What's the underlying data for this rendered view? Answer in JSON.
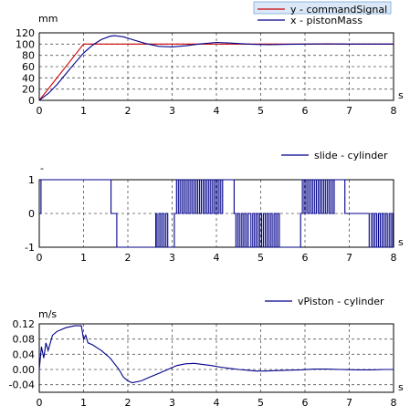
{
  "chart_data": [
    {
      "type": "line",
      "x_unit": "s",
      "y_unit": "mm",
      "xlim": [
        0,
        8
      ],
      "ylim": [
        0,
        120
      ],
      "x_ticks": [
        "0",
        "1",
        "2",
        "3",
        "4",
        "5",
        "6",
        "7",
        "8"
      ],
      "y_ticks": [
        "0",
        "20",
        "40",
        "60",
        "80",
        "100",
        "120"
      ],
      "grid": true,
      "legend": {
        "placement": "top-right",
        "entries": [
          "y - commandSignal",
          "x - pistonMass"
        ]
      },
      "series": [
        {
          "name": "y - commandSignal",
          "color": "#cc0000",
          "points": [
            [
              0,
              0
            ],
            [
              0.8,
              80
            ],
            [
              1.0,
              100
            ],
            [
              8,
              100
            ]
          ]
        },
        {
          "name": "x - pistonMass",
          "color": "#00008b",
          "points": [
            [
              0,
              0
            ],
            [
              0.2,
              12
            ],
            [
              0.4,
              28
            ],
            [
              0.6,
              47
            ],
            [
              0.8,
              66
            ],
            [
              1.0,
              84
            ],
            [
              1.2,
              98
            ],
            [
              1.4,
              108
            ],
            [
              1.6,
              114
            ],
            [
              1.7,
              115
            ],
            [
              1.9,
              113
            ],
            [
              2.1,
              108
            ],
            [
              2.4,
              101
            ],
            [
              2.7,
              96
            ],
            [
              3.0,
              95
            ],
            [
              3.3,
              97
            ],
            [
              3.6,
              100
            ],
            [
              4.0,
              103
            ],
            [
              4.4,
              101.5
            ],
            [
              4.8,
              99.5
            ],
            [
              5.2,
              99
            ],
            [
              5.6,
              99.5
            ],
            [
              6.0,
              100
            ],
            [
              6.5,
              100.5
            ],
            [
              7.0,
              100
            ],
            [
              8.0,
              100
            ]
          ]
        }
      ]
    },
    {
      "type": "line",
      "x_unit": "s",
      "y_unit": "-",
      "xlim": [
        0,
        8
      ],
      "ylim": [
        -1,
        1
      ],
      "x_ticks": [
        "0",
        "1",
        "2",
        "3",
        "4",
        "5",
        "6",
        "7",
        "8"
      ],
      "y_ticks": [
        "-1",
        "0",
        "1"
      ],
      "grid": true,
      "legend": {
        "placement": "top-right",
        "entries": [
          "slide - cylinder"
        ]
      },
      "series": [
        {
          "name": "slide - cylinder",
          "color": "#00008b",
          "steps": [
            [
              0,
              0
            ],
            [
              0.04,
              1
            ],
            [
              1.62,
              0
            ],
            [
              1.75,
              -1
            ],
            [
              2.63,
              0
            ],
            [
              2.66,
              -1
            ],
            [
              2.7,
              0
            ],
            [
              2.74,
              -1
            ],
            [
              2.78,
              0
            ],
            [
              2.82,
              -1
            ],
            [
              2.86,
              0
            ],
            [
              2.9,
              -1
            ],
            [
              3.05,
              0
            ],
            [
              3.1,
              1
            ],
            [
              3.14,
              0
            ],
            [
              3.18,
              1
            ],
            [
              3.22,
              0
            ],
            [
              3.26,
              1
            ],
            [
              3.3,
              0
            ],
            [
              3.34,
              1
            ],
            [
              3.38,
              0
            ],
            [
              3.42,
              1
            ],
            [
              3.46,
              0
            ],
            [
              3.5,
              1
            ],
            [
              3.54,
              0
            ],
            [
              3.58,
              1
            ],
            [
              3.62,
              0
            ],
            [
              3.66,
              1
            ],
            [
              3.7,
              0
            ],
            [
              3.74,
              1
            ],
            [
              3.78,
              0
            ],
            [
              3.82,
              1
            ],
            [
              3.86,
              0
            ],
            [
              3.9,
              1
            ],
            [
              3.94,
              0
            ],
            [
              3.98,
              1
            ],
            [
              4.02,
              0
            ],
            [
              4.06,
              1
            ],
            [
              4.1,
              0
            ],
            [
              4.14,
              1
            ],
            [
              4.4,
              0
            ],
            [
              4.44,
              -1
            ],
            [
              4.48,
              0
            ],
            [
              4.52,
              -1
            ],
            [
              4.56,
              0
            ],
            [
              4.6,
              -1
            ],
            [
              4.64,
              0
            ],
            [
              4.68,
              -1
            ],
            [
              4.72,
              0
            ],
            [
              4.78,
              -1
            ],
            [
              4.82,
              0
            ],
            [
              4.86,
              -1
            ],
            [
              4.9,
              0
            ],
            [
              4.94,
              -1
            ],
            [
              4.98,
              0
            ],
            [
              5.02,
              -1
            ],
            [
              5.06,
              0
            ],
            [
              5.1,
              -1
            ],
            [
              5.14,
              0
            ],
            [
              5.18,
              -1
            ],
            [
              5.22,
              0
            ],
            [
              5.26,
              -1
            ],
            [
              5.3,
              0
            ],
            [
              5.34,
              -1
            ],
            [
              5.38,
              0
            ],
            [
              5.42,
              -1
            ],
            [
              5.9,
              0
            ],
            [
              5.94,
              1
            ],
            [
              5.98,
              0
            ],
            [
              6.02,
              1
            ],
            [
              6.06,
              0
            ],
            [
              6.1,
              1
            ],
            [
              6.14,
              0
            ],
            [
              6.18,
              1
            ],
            [
              6.22,
              0
            ],
            [
              6.26,
              1
            ],
            [
              6.3,
              0
            ],
            [
              6.34,
              1
            ],
            [
              6.38,
              0
            ],
            [
              6.42,
              1
            ],
            [
              6.46,
              0
            ],
            [
              6.5,
              1
            ],
            [
              6.54,
              0
            ],
            [
              6.58,
              1
            ],
            [
              6.62,
              0
            ],
            [
              6.66,
              1
            ],
            [
              6.9,
              0
            ],
            [
              7.45,
              -1
            ],
            [
              7.5,
              0
            ],
            [
              7.54,
              -1
            ],
            [
              7.58,
              0
            ],
            [
              7.62,
              -1
            ],
            [
              7.66,
              0
            ],
            [
              7.7,
              -1
            ],
            [
              7.74,
              0
            ],
            [
              7.78,
              -1
            ],
            [
              7.82,
              0
            ],
            [
              7.86,
              -1
            ],
            [
              7.9,
              0
            ],
            [
              7.94,
              -1
            ],
            [
              7.98,
              0
            ],
            [
              8.0,
              0
            ]
          ]
        }
      ]
    },
    {
      "type": "line",
      "x_unit": "s",
      "y_unit": "m/s",
      "xlim": [
        0,
        8
      ],
      "ylim": [
        -0.06,
        0.12
      ],
      "x_ticks": [
        "0",
        "1",
        "2",
        "3",
        "4",
        "5",
        "6",
        "7",
        "8"
      ],
      "y_ticks": [
        "-0.04",
        "0.00",
        "0.04",
        "0.08",
        "0.12"
      ],
      "grid": true,
      "legend": {
        "placement": "top-right",
        "entries": [
          "vPiston - cylinder"
        ]
      },
      "series": [
        {
          "name": "vPiston - cylinder",
          "color": "#00008b",
          "points": [
            [
              0,
              0
            ],
            [
              0.05,
              0.06
            ],
            [
              0.1,
              0.03
            ],
            [
              0.15,
              0.07
            ],
            [
              0.2,
              0.05
            ],
            [
              0.3,
              0.09
            ],
            [
              0.4,
              0.1
            ],
            [
              0.6,
              0.11
            ],
            [
              0.8,
              0.115
            ],
            [
              0.95,
              0.115
            ],
            [
              1.0,
              0.08
            ],
            [
              1.05,
              0.09
            ],
            [
              1.1,
              0.07
            ],
            [
              1.2,
              0.065
            ],
            [
              1.4,
              0.05
            ],
            [
              1.6,
              0.03
            ],
            [
              1.8,
              0.0
            ],
            [
              1.9,
              -0.02
            ],
            [
              2.0,
              -0.03
            ],
            [
              2.1,
              -0.035
            ],
            [
              2.3,
              -0.03
            ],
            [
              2.5,
              -0.02
            ],
            [
              2.7,
              -0.01
            ],
            [
              2.9,
              0.0
            ],
            [
              3.1,
              0.01
            ],
            [
              3.3,
              0.015
            ],
            [
              3.5,
              0.016
            ],
            [
              3.7,
              0.013
            ],
            [
              3.9,
              0.01
            ],
            [
              4.1,
              0.006
            ],
            [
              4.3,
              0.003
            ],
            [
              4.5,
              0.0
            ],
            [
              4.7,
              -0.002
            ],
            [
              4.9,
              -0.004
            ],
            [
              5.1,
              -0.004
            ],
            [
              5.3,
              -0.003
            ],
            [
              5.6,
              -0.002
            ],
            [
              5.9,
              -0.001
            ],
            [
              6.2,
              0.001
            ],
            [
              6.5,
              0.001
            ],
            [
              6.8,
              0.0
            ],
            [
              7.2,
              -0.001
            ],
            [
              7.5,
              -0.001
            ],
            [
              7.8,
              0.0
            ],
            [
              8.0,
              0.0
            ]
          ]
        }
      ]
    }
  ]
}
